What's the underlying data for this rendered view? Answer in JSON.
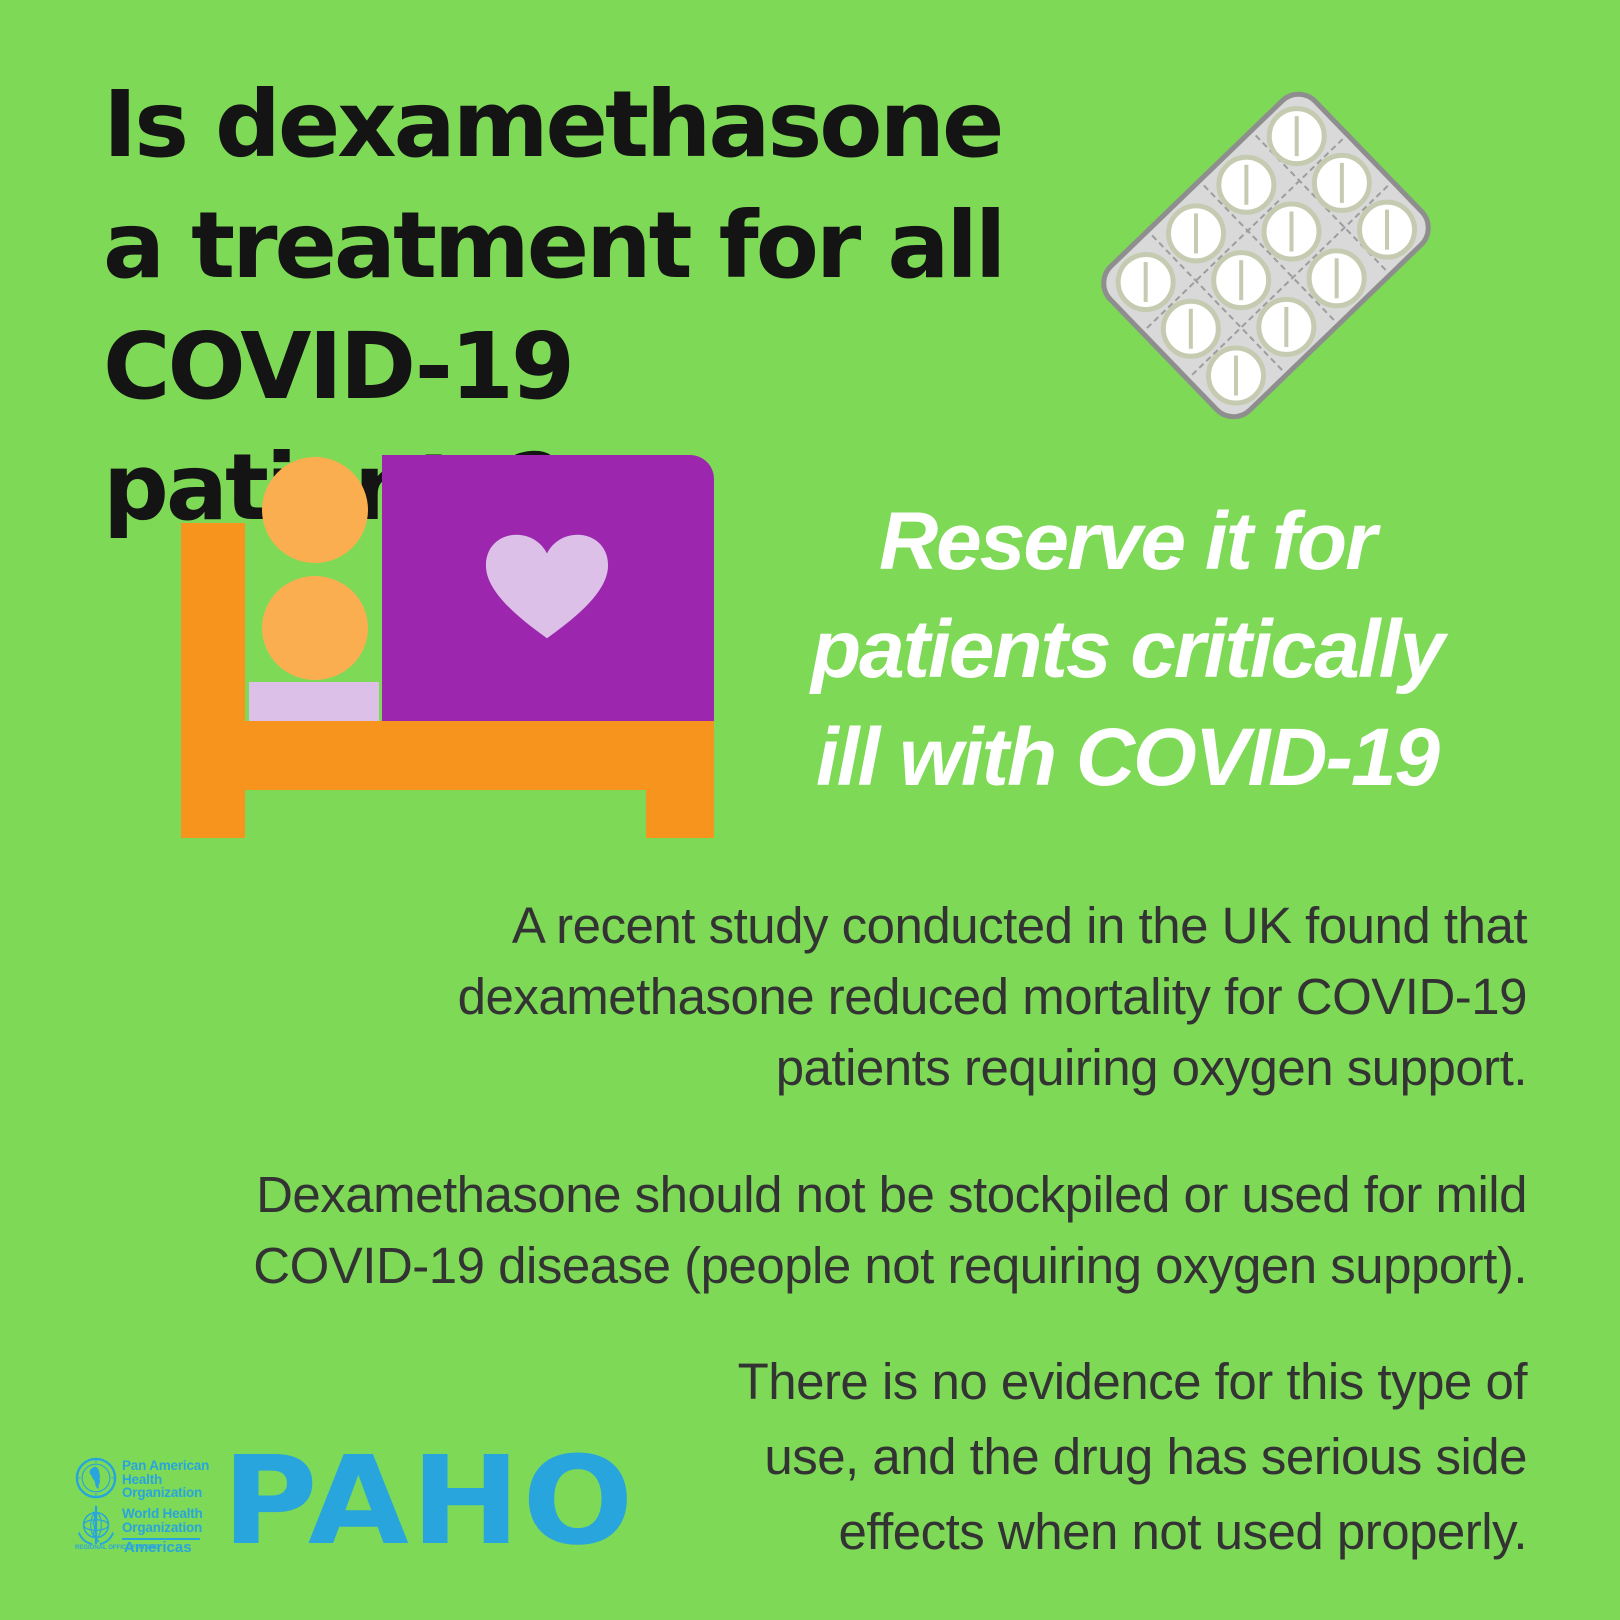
{
  "page": {
    "background": "#7ed957"
  },
  "headline": {
    "text": "Is dexamethasone\na treatment for all\nCOVID-19 patients?",
    "color": "#141414"
  },
  "subhead": {
    "text": "Reserve it for\npatients critically\nill with COVID-19",
    "color": "#ffffff"
  },
  "paragraphs": {
    "color": "#333333",
    "p1": "A recent study conducted in the UK found that\ndexamethasone reduced mortality for COVID-19\npatients requiring oxygen support.",
    "p2": "Dexamethasone should not be stockpiled or used for mild\nCOVID-19 disease (people not requiring oxygen support).",
    "p3": "There is no evidence for this type of\nuse, and the drug has serious side\neffects when not used properly."
  },
  "illustrations": {
    "pill_pack": {
      "rows": 3,
      "cols": 4,
      "tray_color": "#d9d9d9",
      "border_color": "#8e8e8e",
      "pill_color": "#ffffff",
      "ring_color": "#c5cbb0"
    },
    "hospital_bed": {
      "frame_color": "#f7941d",
      "patient_color": "#fbae4f",
      "blanket_color": "#9c27ae",
      "pillow_color": "#dcc0e8",
      "heart_color": "#dcc0e8"
    }
  },
  "logo": {
    "color": "#29a5dd",
    "org1": "Pan American\nHealth\nOrganization",
    "org2": "World Health\nOrganization",
    "regional_office": "REGIONAL OFFICE FOR THE",
    "region": "Americas",
    "acronym": "PAHO"
  }
}
